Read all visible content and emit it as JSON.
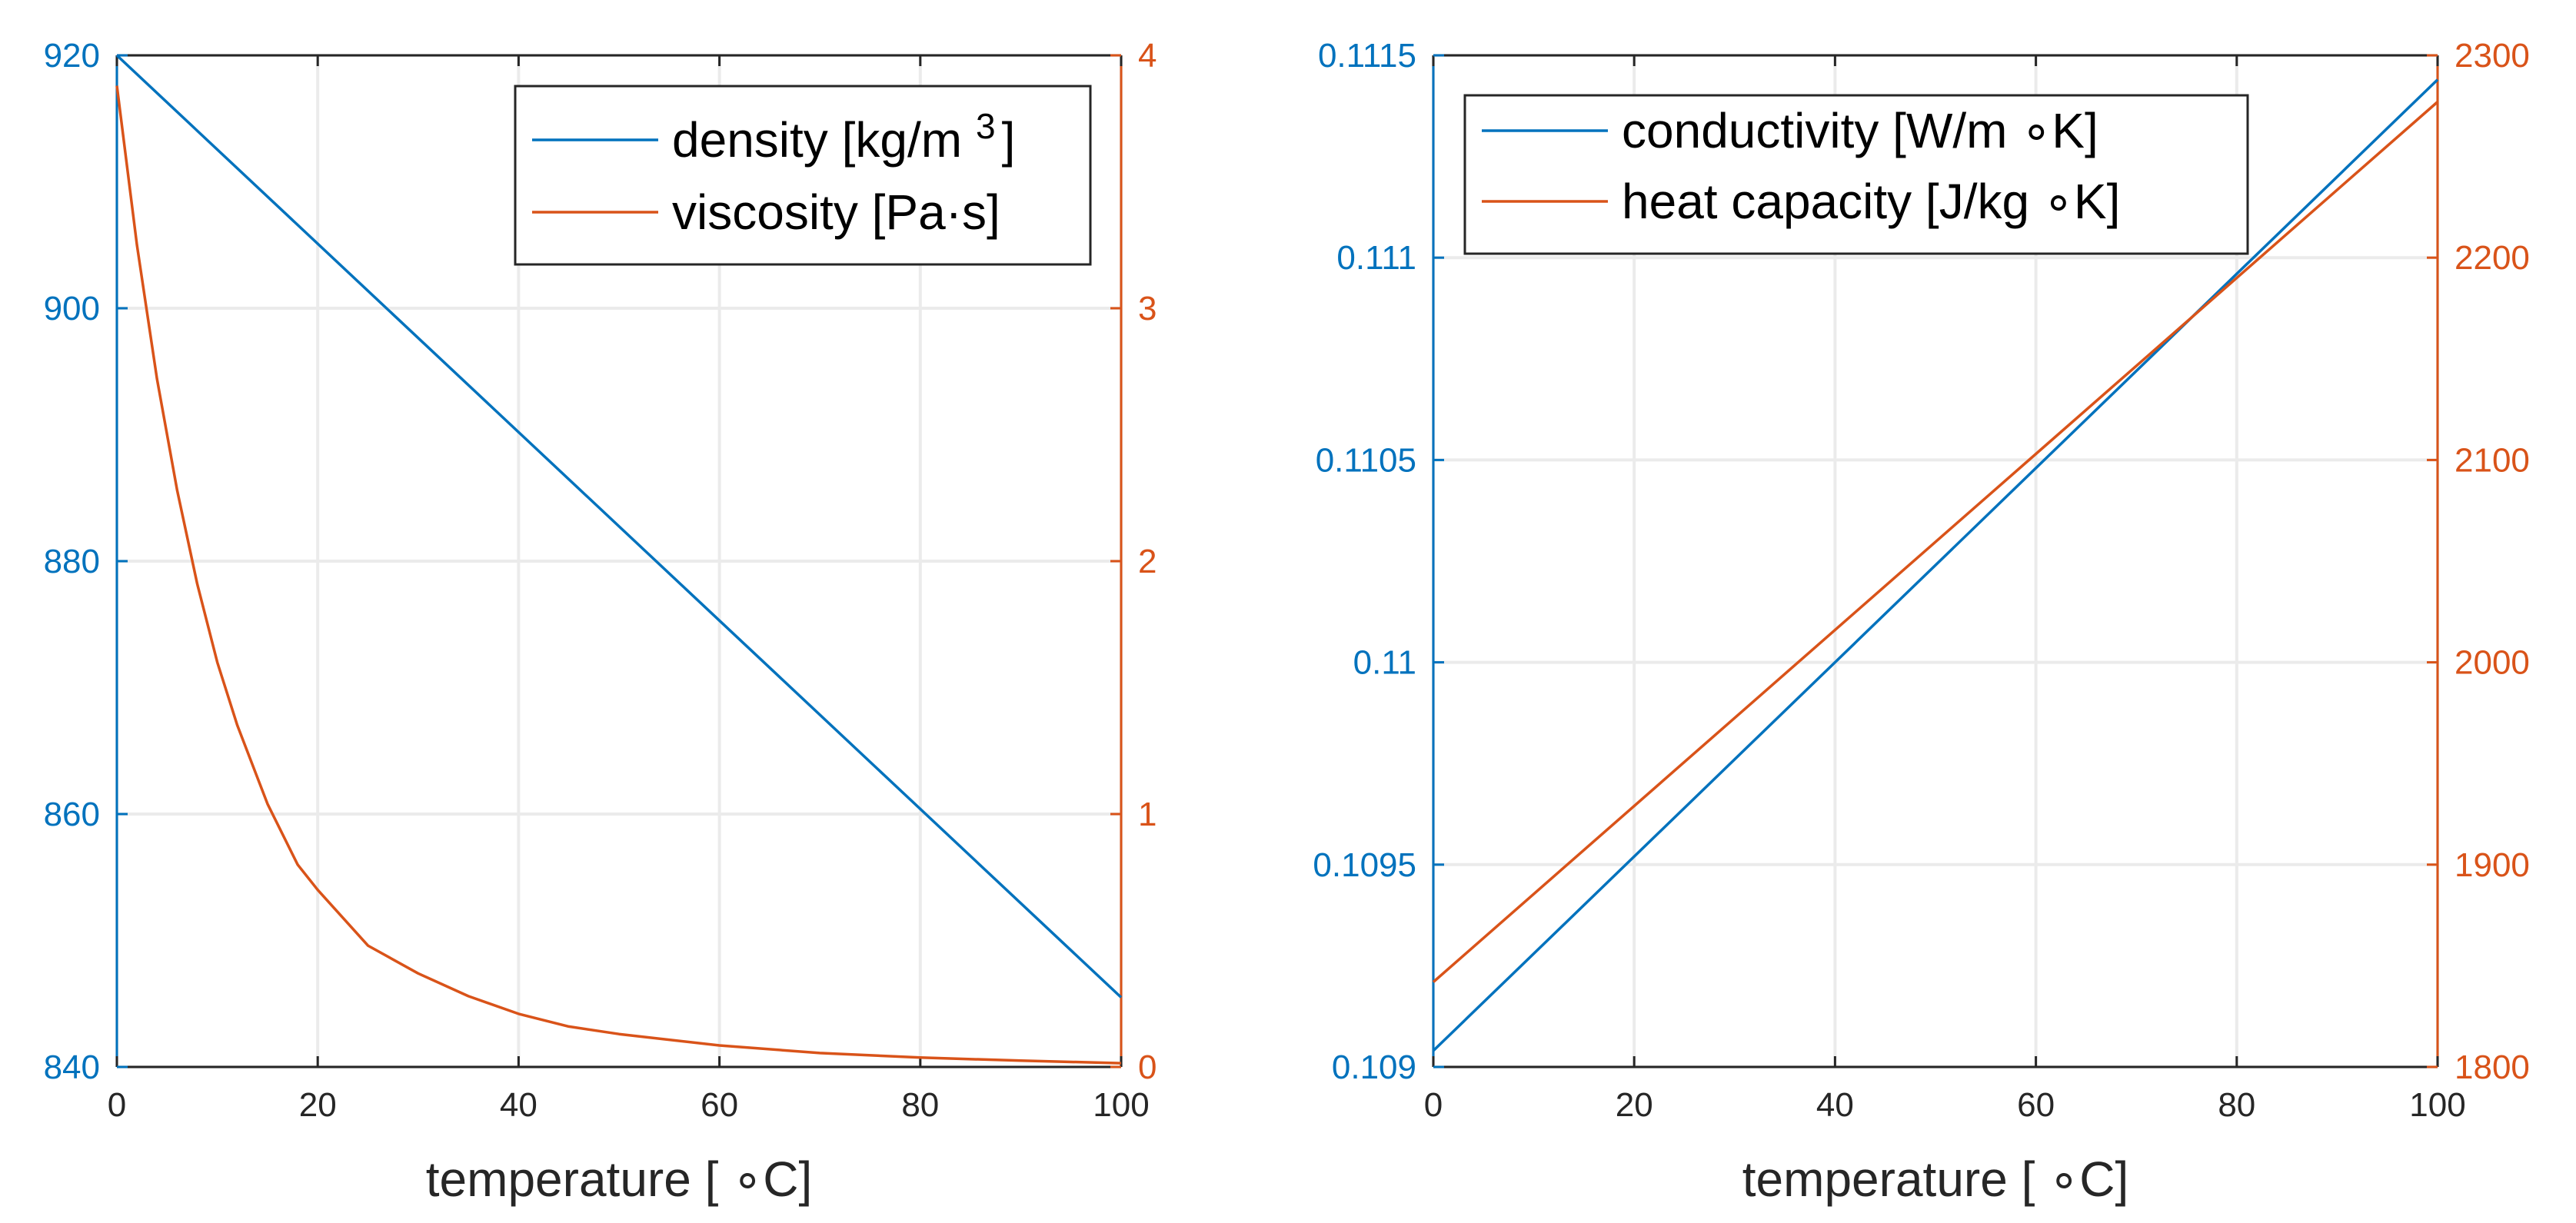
{
  "colors": {
    "left_axis": "#0072BD",
    "right_axis": "#D95319",
    "grid": "#EBEBEB",
    "axis_text": "#262626"
  },
  "chart_data": [
    {
      "type": "line",
      "xlabel": "temperature [ ∘C]",
      "xlim": [
        0,
        100
      ],
      "xticks": [
        "0",
        "20",
        "40",
        "60",
        "80",
        "100"
      ],
      "grid": true,
      "legend_position": "top-right",
      "left_axis": {
        "ylim": [
          840,
          920
        ],
        "ticks": [
          "840",
          "860",
          "880",
          "900",
          "920"
        ]
      },
      "right_axis": {
        "ylim": [
          0,
          4
        ],
        "ticks": [
          "0",
          "1",
          "2",
          "3",
          "4"
        ]
      },
      "series": [
        {
          "name": "density [kg/m",
          "superscript": "3",
          "suffix": "]",
          "axis": "left",
          "x": [
            0,
            100
          ],
          "y": [
            920,
            845.5
          ]
        },
        {
          "name": "viscosity [Pa·s]",
          "axis": "right",
          "x": [
            0,
            2,
            4,
            6,
            8,
            10,
            12,
            15,
            18,
            20,
            25,
            30,
            35,
            40,
            45,
            50,
            60,
            70,
            80,
            90,
            100
          ],
          "y": [
            3.88,
            3.25,
            2.72,
            2.28,
            1.91,
            1.6,
            1.35,
            1.04,
            0.8,
            0.7,
            0.48,
            0.37,
            0.28,
            0.21,
            0.16,
            0.13,
            0.085,
            0.055,
            0.037,
            0.025,
            0.015
          ]
        }
      ]
    },
    {
      "type": "line",
      "xlabel": "temperature [ ∘C]",
      "xlim": [
        0,
        100
      ],
      "xticks": [
        "0",
        "20",
        "40",
        "60",
        "80",
        "100"
      ],
      "grid": true,
      "legend_position": "top-left",
      "left_axis": {
        "ylim": [
          0.109,
          0.1115
        ],
        "ticks": [
          "0.109",
          "0.1095",
          "0.11",
          "0.1105",
          "0.111",
          "0.1115"
        ]
      },
      "right_axis": {
        "ylim": [
          1800,
          2300
        ],
        "ticks": [
          "1800",
          "1900",
          "2000",
          "2100",
          "2200",
          "2300"
        ]
      },
      "series": [
        {
          "name": "conductivity [W/m ∘K]",
          "axis": "left",
          "x": [
            0,
            100
          ],
          "y": [
            0.10904,
            0.11144
          ]
        },
        {
          "name": "heat capacity [J/kg ∘K]",
          "axis": "right",
          "x": [
            0,
            100
          ],
          "y": [
            1842,
            2277
          ]
        }
      ]
    }
  ]
}
